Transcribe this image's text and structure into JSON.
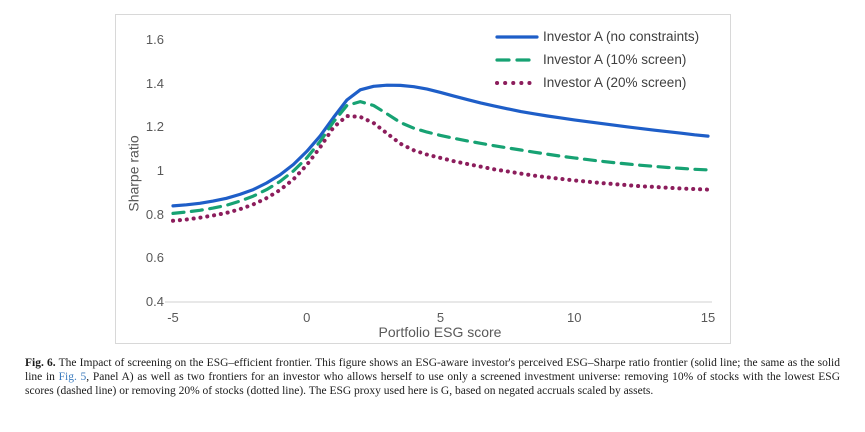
{
  "figure": {
    "caption": {
      "fig_label": "Fig. 6.",
      "text_before_link": "The Impact of screening on the ESG–efficient frontier. This figure shows an ESG-aware investor's perceived ESG–Sharpe ratio frontier (solid line; the same as the solid line in ",
      "link_text": "Fig. 5",
      "text_after_link": ", Panel A) as well as two frontiers for an investor who allows herself to use only a screened investment universe: removing 10% of stocks with the lowest ESG scores (dashed line) or removing 20% of stocks (dotted line). The ESG proxy used here is G, based on negated accruals scaled by assets.",
      "link_color": "#3b7bbe"
    }
  },
  "chart_data": {
    "type": "line",
    "title": "",
    "xlabel": "Portfolio ESG score",
    "ylabel": "Sharpe ratio",
    "xlim": [
      -5,
      15
    ],
    "ylim": [
      0.4,
      1.6
    ],
    "x_ticks": [
      -5,
      0,
      5,
      10,
      15
    ],
    "y_ticks": [
      1.6,
      1.4,
      1.2,
      1,
      0.8,
      0.6,
      0.4
    ],
    "grid": false,
    "legend_position": "top-right-inside",
    "colors": {
      "axis_line": "#d9d9d9",
      "tick_text": "#595959",
      "legend_text": "#3f3f3f"
    },
    "series": [
      {
        "name": "Investor A (no constraints)",
        "style": "solid",
        "color": "#1e5ec8",
        "points": [
          [
            -5,
            0.84
          ],
          [
            -4.5,
            0.845
          ],
          [
            -4,
            0.852
          ],
          [
            -3.5,
            0.862
          ],
          [
            -3,
            0.875
          ],
          [
            -2.5,
            0.893
          ],
          [
            -2,
            0.915
          ],
          [
            -1.5,
            0.945
          ],
          [
            -1,
            0.982
          ],
          [
            -0.5,
            1.03
          ],
          [
            0,
            1.09
          ],
          [
            0.5,
            1.16
          ],
          [
            1,
            1.245
          ],
          [
            1.5,
            1.325
          ],
          [
            2,
            1.372
          ],
          [
            2.5,
            1.388
          ],
          [
            3,
            1.393
          ],
          [
            3.5,
            1.392
          ],
          [
            4,
            1.386
          ],
          [
            4.5,
            1.375
          ],
          [
            5,
            1.36
          ],
          [
            5.5,
            1.343
          ],
          [
            6,
            1.327
          ],
          [
            6.5,
            1.312
          ],
          [
            7,
            1.298
          ],
          [
            7.5,
            1.285
          ],
          [
            8,
            1.272
          ],
          [
            8.5,
            1.262
          ],
          [
            9,
            1.252
          ],
          [
            9.5,
            1.243
          ],
          [
            10,
            1.234
          ],
          [
            10.5,
            1.226
          ],
          [
            11,
            1.218
          ],
          [
            11.5,
            1.21
          ],
          [
            12,
            1.202
          ],
          [
            12.5,
            1.194
          ],
          [
            13,
            1.187
          ],
          [
            13.5,
            1.18
          ],
          [
            14,
            1.173
          ],
          [
            14.5,
            1.166
          ],
          [
            15,
            1.16
          ]
        ]
      },
      {
        "name": "Investor A (10% screen)",
        "style": "dashed",
        "color": "#17a273",
        "points": [
          [
            -5,
            0.806
          ],
          [
            -4.5,
            0.812
          ],
          [
            -4,
            0.82
          ],
          [
            -3.5,
            0.83
          ],
          [
            -3,
            0.843
          ],
          [
            -2.5,
            0.862
          ],
          [
            -2,
            0.885
          ],
          [
            -1.5,
            0.915
          ],
          [
            -1,
            0.952
          ],
          [
            -0.5,
            1.0
          ],
          [
            0,
            1.06
          ],
          [
            0.5,
            1.135
          ],
          [
            1,
            1.225
          ],
          [
            1.5,
            1.3
          ],
          [
            2,
            1.318
          ],
          [
            2.5,
            1.3
          ],
          [
            3,
            1.262
          ],
          [
            3.5,
            1.222
          ],
          [
            4,
            1.196
          ],
          [
            4.5,
            1.178
          ],
          [
            5,
            1.163
          ],
          [
            5.5,
            1.15
          ],
          [
            6,
            1.138
          ],
          [
            6.5,
            1.127
          ],
          [
            7,
            1.116
          ],
          [
            7.5,
            1.106
          ],
          [
            8,
            1.096
          ],
          [
            8.5,
            1.086
          ],
          [
            9,
            1.077
          ],
          [
            9.5,
            1.068
          ],
          [
            10,
            1.06
          ],
          [
            10.5,
            1.052
          ],
          [
            11,
            1.045
          ],
          [
            11.5,
            1.038
          ],
          [
            12,
            1.032
          ],
          [
            12.5,
            1.026
          ],
          [
            13,
            1.021
          ],
          [
            13.5,
            1.016
          ],
          [
            14,
            1.012
          ],
          [
            14.5,
            1.008
          ],
          [
            15,
            1.005
          ]
        ]
      },
      {
        "name": "Investor A (20% screen)",
        "style": "dotted",
        "color": "#8c1d5c",
        "points": [
          [
            -5,
            0.772
          ],
          [
            -4.5,
            0.778
          ],
          [
            -4,
            0.786
          ],
          [
            -3.5,
            0.796
          ],
          [
            -3,
            0.808
          ],
          [
            -2.5,
            0.825
          ],
          [
            -2,
            0.847
          ],
          [
            -1.5,
            0.876
          ],
          [
            -1,
            0.913
          ],
          [
            -0.5,
            0.962
          ],
          [
            0,
            1.028
          ],
          [
            0.5,
            1.108
          ],
          [
            1,
            1.2
          ],
          [
            1.5,
            1.252
          ],
          [
            2,
            1.248
          ],
          [
            2.5,
            1.22
          ],
          [
            3,
            1.172
          ],
          [
            3.5,
            1.125
          ],
          [
            4,
            1.095
          ],
          [
            4.5,
            1.075
          ],
          [
            5,
            1.06
          ],
          [
            5.5,
            1.045
          ],
          [
            6,
            1.032
          ],
          [
            6.5,
            1.02
          ],
          [
            7,
            1.008
          ],
          [
            7.5,
            0.998
          ],
          [
            8,
            0.988
          ],
          [
            8.5,
            0.979
          ],
          [
            9,
            0.971
          ],
          [
            9.5,
            0.964
          ],
          [
            10,
            0.957
          ],
          [
            10.5,
            0.951
          ],
          [
            11,
            0.945
          ],
          [
            11.5,
            0.94
          ],
          [
            12,
            0.935
          ],
          [
            12.5,
            0.93
          ],
          [
            13,
            0.927
          ],
          [
            13.5,
            0.923
          ],
          [
            14,
            0.92
          ],
          [
            14.5,
            0.917
          ],
          [
            15,
            0.915
          ]
        ]
      }
    ]
  }
}
